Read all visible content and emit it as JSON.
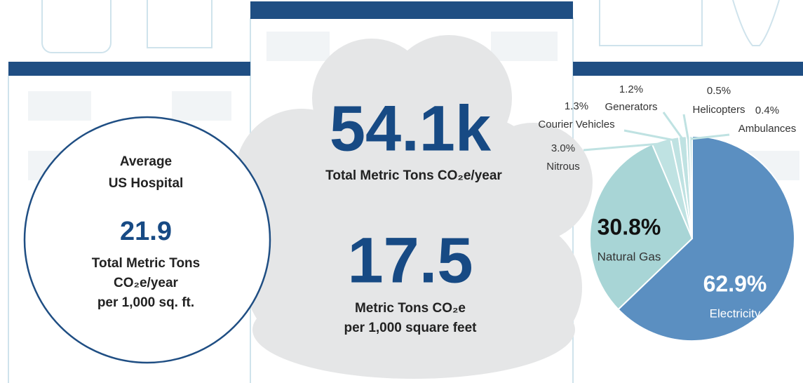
{
  "summary": {
    "hospital_heading": [
      "Average",
      "US Hospital"
    ],
    "hospital_value": "21.9",
    "hospital_units": [
      "Total Metric Tons",
      "CO₂e/year",
      "per 1,000 sq. ft."
    ],
    "total_value": "54.1k",
    "total_units": "Total Metric Tons CO₂e/year",
    "intensity_value": "17.5",
    "intensity_units": [
      "Metric Tons CO₂e",
      "per 1,000 square feet"
    ]
  },
  "chart_data": {
    "type": "pie",
    "categories": [
      "Electricity",
      "Natural Gas",
      "Nitrous",
      "Courier Vehicles",
      "Generators",
      "Helicopters",
      "Ambulances"
    ],
    "values": [
      62.9,
      30.8,
      3.0,
      1.3,
      1.2,
      0.5,
      0.4
    ],
    "value_labels": [
      "62.9%",
      "30.8%",
      "3.0%",
      "1.3%",
      "1.2%",
      "0.5%",
      "0.4%"
    ],
    "colors": [
      "#5b8fc1",
      "#a8d5d6",
      "#bfe2e2",
      "#bfe2e2",
      "#bfe2e2",
      "#bfe2e2",
      "#bfe2e2"
    ]
  }
}
